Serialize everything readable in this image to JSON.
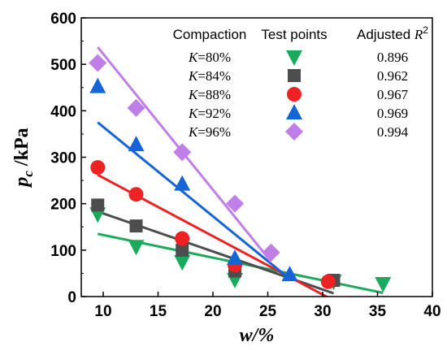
{
  "chart_data": {
    "type": "scatter",
    "xlabel": "w/%",
    "ylabel": "pc /kPa",
    "xlim": [
      8,
      40
    ],
    "ylim": [
      0,
      600
    ],
    "xticks": [
      10,
      15,
      20,
      25,
      30,
      35,
      40
    ],
    "yticks": [
      0,
      100,
      200,
      300,
      400,
      500,
      600
    ],
    "legend": {
      "placement": "top-right",
      "headers": [
        "Compaction",
        "Test points",
        "Adjusted R2"
      ]
    },
    "series": [
      {
        "name": "K=80%",
        "k_label": "K",
        "k_value": "=80%",
        "r2": "0.896",
        "marker": "triangle-down",
        "color": "#1aaa5c",
        "points": [
          [
            9.5,
            178
          ],
          [
            13,
            108
          ],
          [
            17.2,
            75
          ],
          [
            22,
            37
          ],
          [
            31,
            33
          ],
          [
            35.5,
            28
          ]
        ],
        "fit": [
          [
            9.5,
            135
          ],
          [
            35.5,
            8
          ]
        ]
      },
      {
        "name": "K=84%",
        "k_label": "K",
        "k_value": "=84%",
        "r2": "0.962",
        "marker": "square",
        "color": "#4d4d4d",
        "points": [
          [
            9.5,
            197
          ],
          [
            13,
            152
          ],
          [
            17.2,
            100
          ],
          [
            22,
            55
          ],
          [
            31,
            35
          ]
        ],
        "fit": [
          [
            9.5,
            183
          ],
          [
            31,
            7
          ]
        ]
      },
      {
        "name": "K=88%",
        "k_label": "K",
        "k_value": "=88%",
        "r2": "0.967",
        "marker": "circle",
        "color": "#ee2222",
        "points": [
          [
            9.5,
            278
          ],
          [
            13,
            220
          ],
          [
            17.2,
            125
          ],
          [
            22,
            68
          ],
          [
            30.5,
            32
          ]
        ],
        "fit": [
          [
            9.5,
            262
          ],
          [
            30.5,
            -2
          ]
        ]
      },
      {
        "name": "K=92%",
        "k_label": "K",
        "k_value": "=92%",
        "r2": "0.969",
        "marker": "triangle-up",
        "color": "#1565d6",
        "points": [
          [
            9.5,
            452
          ],
          [
            13,
            327
          ],
          [
            17.2,
            242
          ],
          [
            22,
            82
          ],
          [
            27,
            47
          ]
        ],
        "fit": [
          [
            9.5,
            375
          ],
          [
            27,
            38
          ]
        ]
      },
      {
        "name": "K=96%",
        "k_label": "K",
        "k_value": "=96%",
        "r2": "0.994",
        "marker": "diamond",
        "color": "#bf7fe6",
        "points": [
          [
            9.5,
            503
          ],
          [
            13,
            406
          ],
          [
            17.2,
            311
          ],
          [
            22,
            200
          ],
          [
            25.3,
            95
          ]
        ],
        "fit": [
          [
            9.5,
            537
          ],
          [
            25.3,
            75
          ]
        ]
      }
    ]
  }
}
